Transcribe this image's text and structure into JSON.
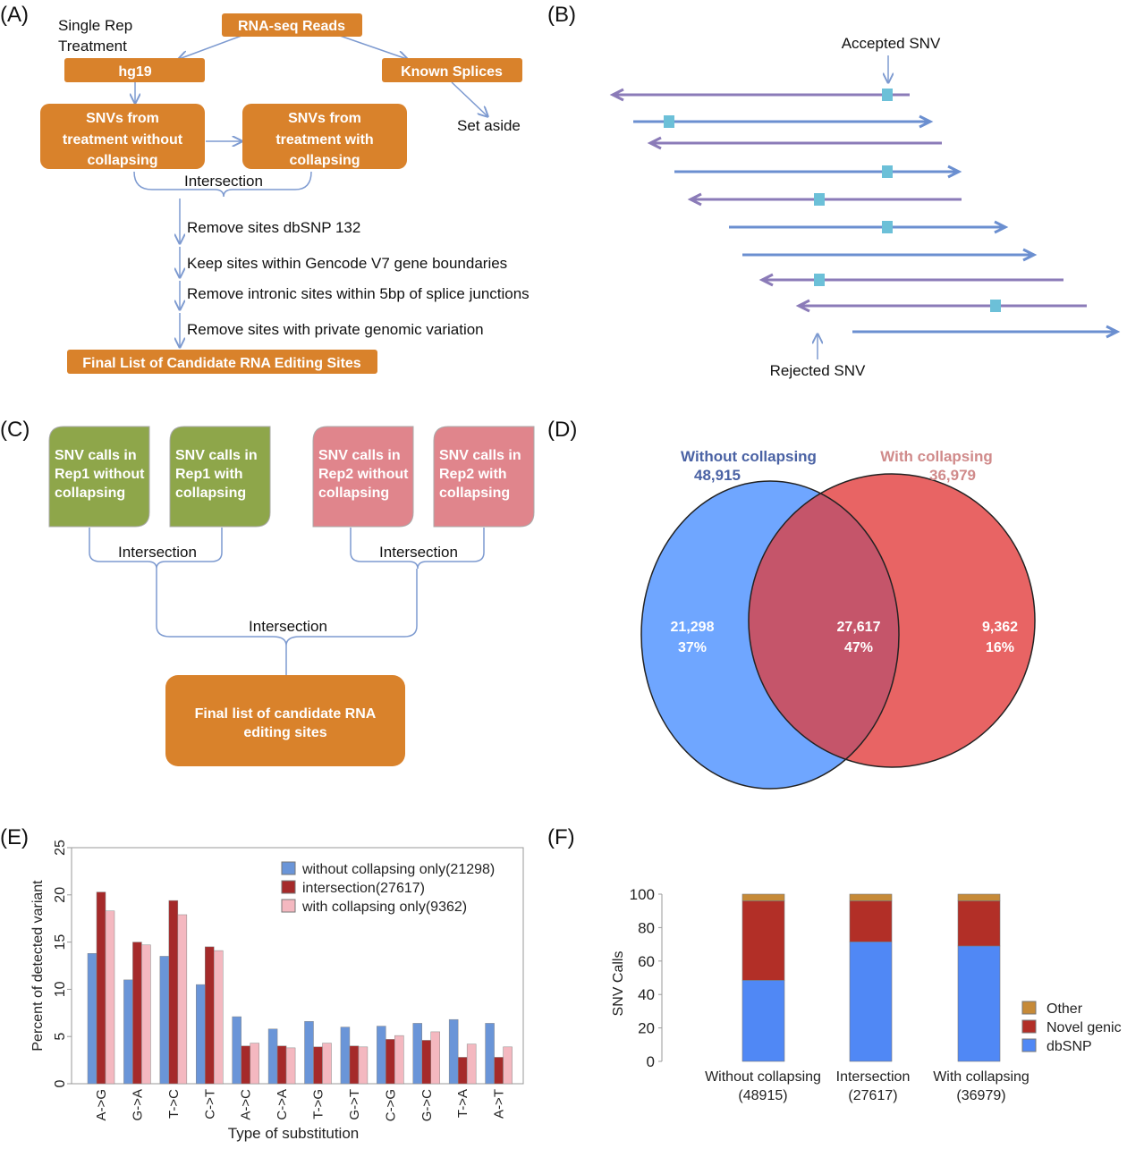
{
  "panels": {
    "a": "(A)",
    "b": "(B)",
    "c": "(C)",
    "d": "(D)",
    "e": "(E)",
    "f": "(F)"
  },
  "panel_a": {
    "reads": "RNA-seq Reads",
    "single_rep": "Single Rep",
    "treatment": "Treatment",
    "hg19": "hg19",
    "known_splices": "Known Splices",
    "set_aside": "Set aside",
    "snv_without": [
      "SNVs from",
      "treatment without",
      "collapsing"
    ],
    "snv_with": [
      "SNVs from",
      "treatment with",
      "collapsing"
    ],
    "intersection": "Intersection",
    "steps": [
      "Remove sites dbSNP 132",
      "Keep sites within Gencode V7 gene boundaries",
      "Remove intronic sites within 5bp of splice junctions",
      "Remove sites with private genomic variation"
    ],
    "final": "Final List of Candidate RNA Editing Sites"
  },
  "panel_b": {
    "accepted": "Accepted SNV",
    "rejected": "Rejected SNV"
  },
  "panel_c": {
    "boxes": [
      [
        "SNV calls in",
        "Rep1 without",
        "collapsing"
      ],
      [
        "SNV calls in",
        "Rep1 with",
        "collapsing"
      ],
      [
        "SNV calls in",
        "Rep2 without",
        "collapsing"
      ],
      [
        "SNV calls in",
        "Rep2 with",
        "collapsing"
      ]
    ],
    "intersection": "Intersection",
    "final": [
      "Final list of candidate RNA",
      "editing sites"
    ]
  },
  "panel_d": {
    "left_title": "Without collapsing",
    "left_total": "48,915",
    "right_title": "With collapsing",
    "right_total": "36,979",
    "left_only": "21,298",
    "left_pct": "37%",
    "both": "27,617",
    "both_pct": "47%",
    "right_only": "9,362",
    "right_pct": "16%",
    "colors": {
      "left": "#6fa6ff",
      "right": "#e86464",
      "overlap": "#c5556a"
    }
  },
  "chart_data": [
    {
      "type": "bar",
      "title": "",
      "xlabel": "Type of substitution",
      "ylabel": "Percent of detected variant",
      "ylim": [
        0,
        25
      ],
      "yticks": [
        0,
        5,
        10,
        15,
        20,
        25
      ],
      "legend": "top-right",
      "categories": [
        "A->G",
        "G->A",
        "T->C",
        "C->T",
        "A->C",
        "C->A",
        "T->G",
        "G->T",
        "C->G",
        "G->C",
        "T->A",
        "A->T"
      ],
      "series": [
        {
          "name": "without collapsing only(21298)",
          "color": "#6a95d8",
          "values": [
            13.8,
            11.0,
            13.5,
            10.5,
            7.1,
            5.8,
            6.6,
            6.0,
            6.1,
            6.4,
            6.8,
            6.4
          ]
        },
        {
          "name": "intersection(27617)",
          "color": "#a52a2a",
          "values": [
            20.3,
            15.0,
            19.4,
            14.5,
            4.0,
            4.0,
            3.9,
            4.0,
            4.7,
            4.6,
            2.8,
            2.8
          ]
        },
        {
          "name": "with collapsing only(9362)",
          "color": "#f4b8c0",
          "values": [
            18.3,
            14.7,
            17.9,
            14.1,
            4.3,
            3.8,
            4.3,
            3.9,
            5.1,
            5.5,
            4.2,
            3.9
          ]
        }
      ]
    },
    {
      "type": "bar",
      "stacked": true,
      "ylabel": "SNV Calls",
      "ylim": [
        0,
        100
      ],
      "yticks": [
        0,
        20,
        40,
        60,
        80,
        100
      ],
      "legend": "right",
      "categories": [
        [
          "Without collapsing",
          "(48915)"
        ],
        [
          "Intersection",
          "(27617)"
        ],
        [
          "With collapsing",
          "(36979)"
        ]
      ],
      "series": [
        {
          "name": "dbSNP",
          "color": "#5088f5",
          "values": [
            48.5,
            71.5,
            69.0
          ]
        },
        {
          "name": "Novel genic",
          "color": "#b22f27",
          "values": [
            47.5,
            24.5,
            27.0
          ]
        },
        {
          "name": "Other",
          "color": "#c68a38",
          "values": [
            4.0,
            4.0,
            4.0
          ]
        }
      ]
    }
  ]
}
